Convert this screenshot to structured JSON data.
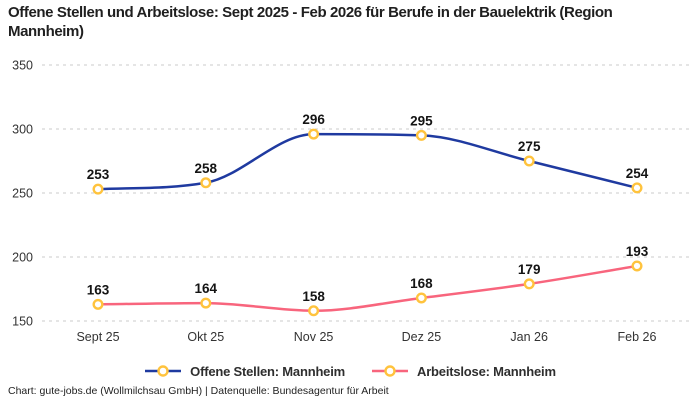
{
  "title": "Offene Stellen und Arbeitslose: Sept 2025 - Feb 2026 für Berufe in der Bauelektrik (Region Mannheim)",
  "footer": "Chart: gute-jobs.de (Wollmilchsau GmbH) | Datenquelle: Bundesagentur für Arbeit",
  "colors": {
    "series_open_positions": "#1F3AA0",
    "series_unemployed": "#F8657D",
    "marker_ring": "#FFC33D",
    "marker_fill": "#FFFFFF",
    "gridline": "#CBCBCB",
    "axis_text": "#333333",
    "data_label_text": "#141414",
    "title_text": "#1F1F1F"
  },
  "chart_data": {
    "type": "line",
    "categories": [
      "Sept 25",
      "Okt 25",
      "Nov 25",
      "Dez 25",
      "Jan 26",
      "Feb 26"
    ],
    "series": [
      {
        "name": "Offene Stellen: Mannheim",
        "color": "#1F3AA0",
        "values": [
          253,
          258,
          296,
          295,
          275,
          254
        ]
      },
      {
        "name": "Arbeitslose: Mannheim",
        "color": "#F8657D",
        "values": [
          163,
          164,
          158,
          168,
          179,
          193
        ]
      }
    ],
    "title": "Offene Stellen und Arbeitslose: Sept 2025 - Feb 2026 für Berufe in der Bauelektrik (Region Mannheim)",
    "xlabel": "",
    "ylabel": "",
    "ylim": [
      150,
      350
    ],
    "yticks": [
      150,
      200,
      250,
      300,
      350
    ],
    "grid": "horizontal-dashed",
    "curve": "monotone",
    "data_labels": true,
    "legend_position": "bottom",
    "marker": {
      "shape": "circle",
      "fill": "#FFFFFF",
      "stroke": "#FFC33D"
    }
  }
}
